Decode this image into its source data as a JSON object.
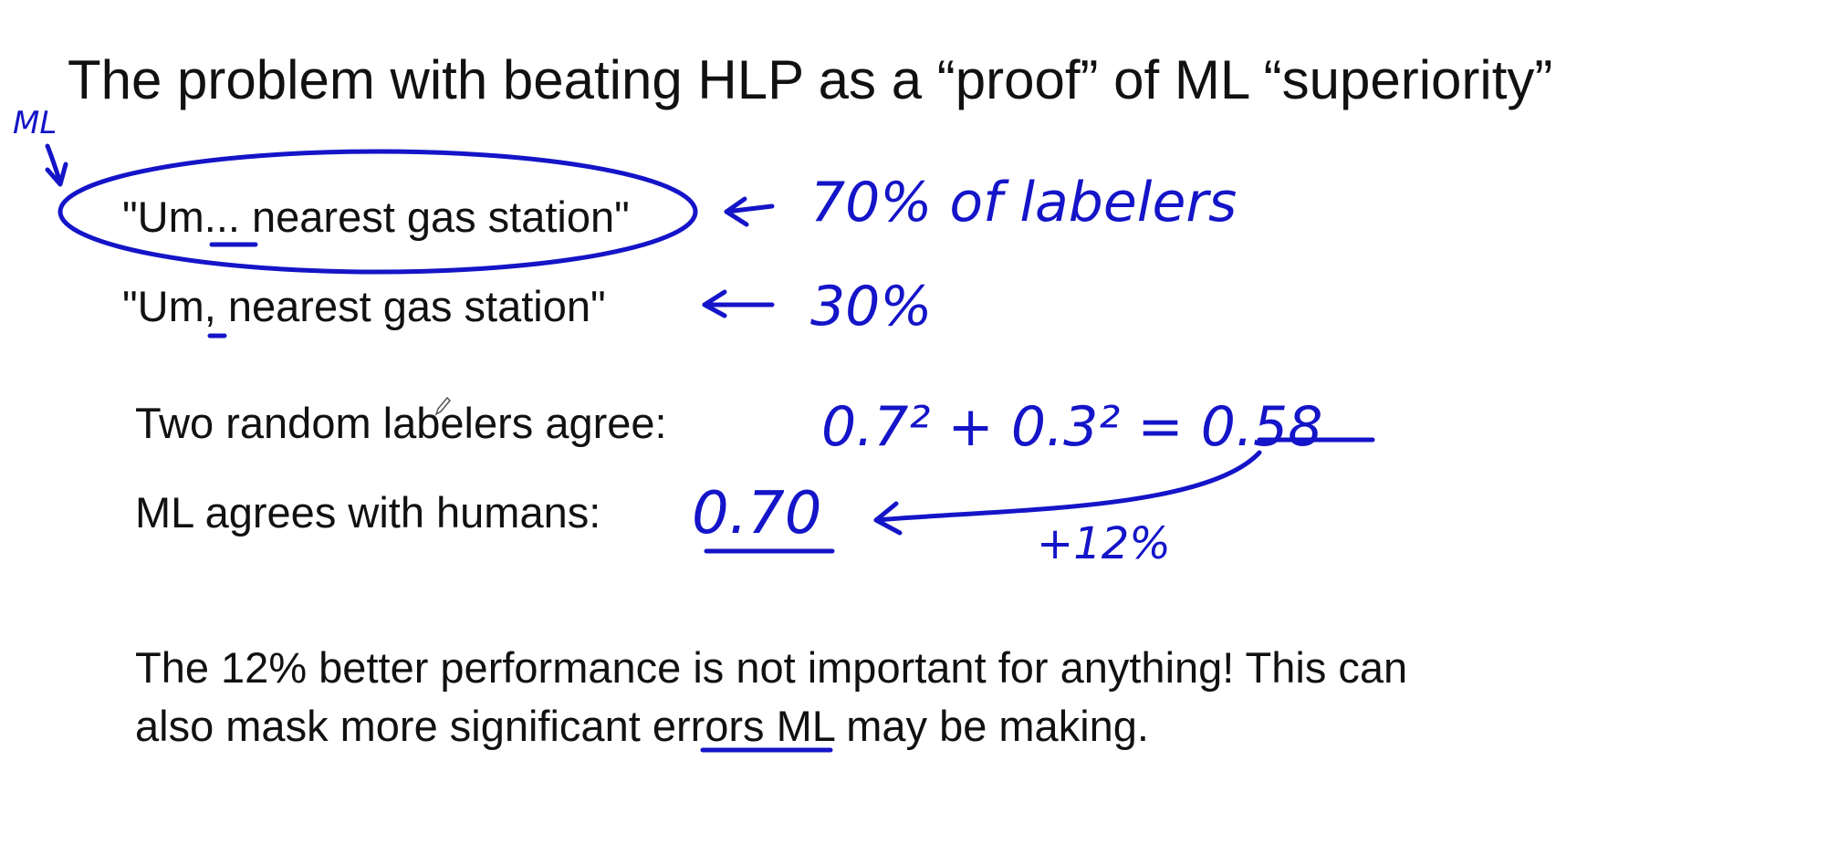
{
  "slide": {
    "title": "The problem with beating HLP as a “proof” of ML “superiority”",
    "examples": [
      "\"Um... nearest gas station\"",
      "\"Um, nearest gas station\""
    ],
    "stats": [
      "Two random labelers agree:",
      "ML agrees with humans:"
    ],
    "paragraph_line1": "The 12% better performance is not important for anything! This can",
    "paragraph_line2": "also mask more significant errors ML may be making."
  },
  "annotations": {
    "ml_tag": "ML",
    "pct_70": "70% of labelers",
    "pct_30": "30%",
    "calc": "0.7² + 0.3² = 0.58",
    "ml_score": "0.70",
    "gain": "+12%"
  },
  "colors": {
    "ink": "#1414c8",
    "text": "#111111",
    "background": "#ffffff"
  }
}
